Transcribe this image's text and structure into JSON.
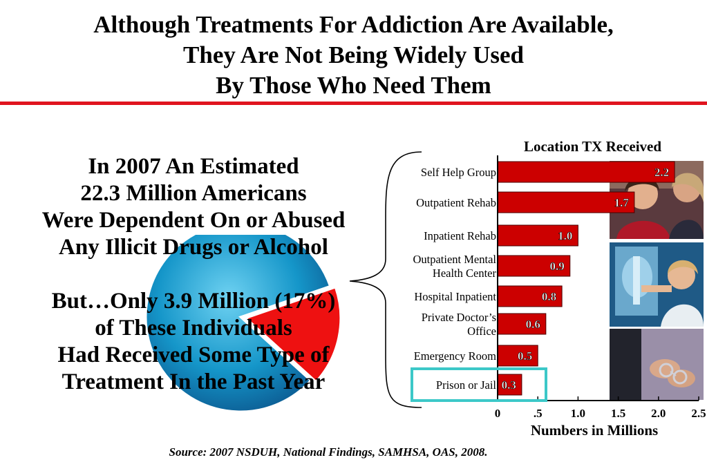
{
  "slide": {
    "title_lines": [
      "Although Treatments For Addiction Are Available,",
      "They Are Not Being Widely Used",
      "By Those Who Need Them"
    ],
    "left_text_block1": [
      "In 2007 An Estimated",
      "22.3 Million Americans",
      "Were Dependent On or Abused",
      "Any Illicit Drugs or Alcohol"
    ],
    "left_text_block2": [
      "But…Only 3.9 Million (17%)",
      "of These Individuals",
      "Had Received Some Type of",
      "Treatment In the Past Year"
    ],
    "source": "Source: 2007 NSDUH, National Findings, SAMHSA, OAS, 2008."
  },
  "colors": {
    "bar_red": "#cc0000",
    "pie_blue": "#1596c9",
    "pie_red": "#ee1111",
    "highlight": "#3cc8c8",
    "rule_red": "#e0141e"
  },
  "chart_data": [
    {
      "type": "pie",
      "values": [
        17,
        83
      ],
      "unit": "%",
      "highlighted_slice": 0
    },
    {
      "type": "bar",
      "orientation": "horizontal",
      "title": "Location TX Received",
      "xlabel": "Numbers in Millions",
      "categories": [
        [
          "Self Help Group"
        ],
        [
          "Outpatient Rehab"
        ],
        [
          "Inpatient Rehab"
        ],
        [
          "Outpatient Mental",
          "Health Center"
        ],
        [
          "Hospital Inpatient"
        ],
        [
          "Private Doctor’s",
          "Office"
        ],
        [
          "Emergency Room"
        ],
        [
          "Prison or Jail"
        ]
      ],
      "values": [
        2.2,
        1.7,
        1.0,
        0.9,
        0.8,
        0.6,
        0.5,
        0.3
      ],
      "value_labels": [
        "2.2",
        "1.7",
        "1.0",
        "0.9",
        "0.8",
        "0.6",
        "0.5",
        "0.3"
      ],
      "xlim": [
        0,
        2.5
      ],
      "xticks": [
        0,
        0.5,
        1.0,
        1.5,
        2.0,
        2.5
      ],
      "xtick_labels": [
        "0",
        ".5",
        "1.0",
        "1.5",
        "2.0",
        "2.5"
      ],
      "highlighted_category": 7,
      "grid": false
    }
  ]
}
